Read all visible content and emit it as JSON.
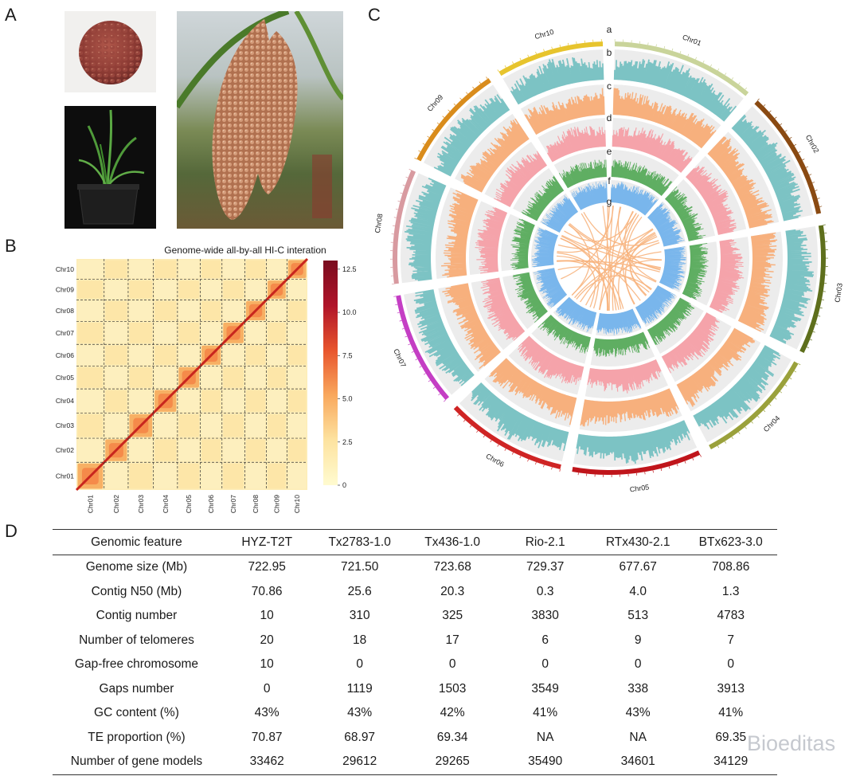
{
  "panels": {
    "a": "A",
    "b": "B",
    "c": "C",
    "d": "D"
  },
  "hic": {
    "title": "Genome-wide all-by-all HI-C interation",
    "colorbar_ticks": [
      "12.5",
      "10.0",
      "7.5",
      "5.0",
      "2.5",
      "0"
    ]
  },
  "chart_data": {
    "type": "heatmap",
    "title": "Genome-wide all-by-all HI-C interation",
    "x_tick_labels": [
      "Chr01",
      "Chr02",
      "Chr03",
      "Chr04",
      "Chr05",
      "Chr06",
      "Chr07",
      "Chr08",
      "Chr09",
      "Chr10"
    ],
    "y_tick_labels": [
      "Chr10",
      "Chr09",
      "Chr08",
      "Chr07",
      "Chr06",
      "Chr05",
      "Chr04",
      "Chr03",
      "Chr02",
      "Chr01"
    ],
    "colorbar_range": [
      0,
      13
    ],
    "colorbar_ticks": [
      0,
      2.5,
      5.0,
      7.5,
      10.0,
      12.5
    ],
    "colormap": [
      "#fffbd0",
      "#fde3a0",
      "#f9a85d",
      "#e8552d",
      "#b0142a",
      "#7a0d1f"
    ]
  },
  "circos": {
    "chromosomes": [
      {
        "name": "Chr01",
        "color": "#c9d49a"
      },
      {
        "name": "Chr02",
        "color": "#8a4a12"
      },
      {
        "name": "Chr03",
        "color": "#5e6f1c"
      },
      {
        "name": "Chr04",
        "color": "#9aa13b"
      },
      {
        "name": "Chr05",
        "color": "#c0151b"
      },
      {
        "name": "Chr06",
        "color": "#cf2424"
      },
      {
        "name": "Chr07",
        "color": "#c43ec4"
      },
      {
        "name": "Chr08",
        "color": "#d89aa0"
      },
      {
        "name": "Chr09",
        "color": "#d98c1c"
      },
      {
        "name": "Chr10",
        "color": "#e7c42d"
      }
    ],
    "track_labels": [
      "a",
      "b",
      "c",
      "d",
      "e",
      "f",
      "g"
    ],
    "track_colors": [
      "#7cc3c4",
      "#f7b07d",
      "#f5a3aa",
      "#5fae62",
      "#79b6ec",
      "#f7b47e"
    ]
  },
  "table": {
    "headers": [
      "Genomic feature",
      "HYZ-T2T",
      "Tx2783-1.0",
      "Tx436-1.0",
      "Rio-2.1",
      "RTx430-2.1",
      "BTx623-3.0"
    ],
    "rows": [
      [
        "Genome size (Mb)",
        "722.95",
        "721.50",
        "723.68",
        "729.37",
        "677.67",
        "708.86"
      ],
      [
        "Contig N50 (Mb)",
        "70.86",
        "25.6",
        "20.3",
        "0.3",
        "4.0",
        "1.3"
      ],
      [
        "Contig number",
        "10",
        "310",
        "325",
        "3830",
        "513",
        "4783"
      ],
      [
        "Number of telomeres",
        "20",
        "18",
        "17",
        "6",
        "9",
        "7"
      ],
      [
        "Gap-free chromosome",
        "10",
        "0",
        "0",
        "0",
        "0",
        "0"
      ],
      [
        "Gaps number",
        "0",
        "1119",
        "1503",
        "3549",
        "338",
        "3913"
      ],
      [
        "GC content (%)",
        "43%",
        "43%",
        "42%",
        "41%",
        "43%",
        "41%"
      ],
      [
        "TE proportion (%)",
        "70.87",
        "68.97",
        "69.34",
        "NA",
        "NA",
        "69.35"
      ],
      [
        "Number of gene models",
        "33462",
        "29612",
        "29265",
        "35490",
        "34601",
        "34129"
      ]
    ]
  },
  "watermark": "Bioeditas"
}
